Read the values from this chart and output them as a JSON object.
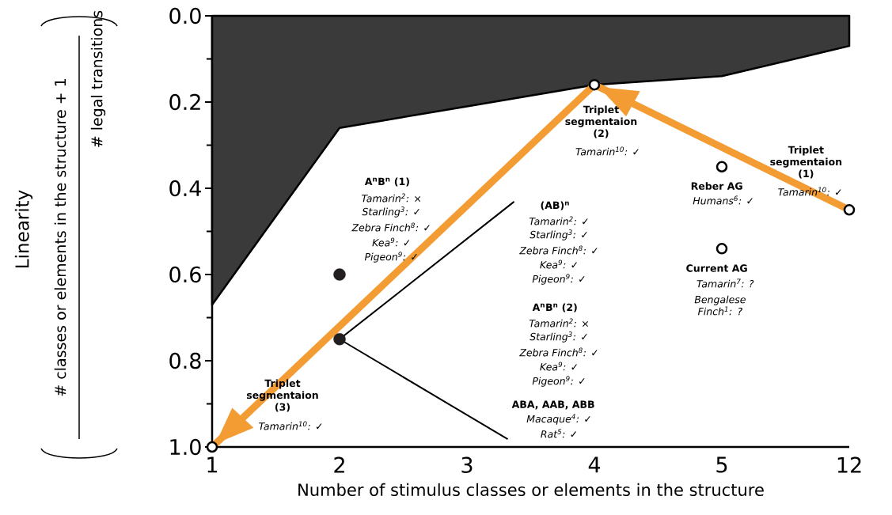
{
  "chart_data": {
    "type": "scatter",
    "xlabel": "Number of stimulus classes or elements in the structure",
    "categories": [
      "1",
      "2",
      "3",
      "4",
      "5",
      "12"
    ],
    "ylim": [
      1.0,
      0.0
    ],
    "yticks": [
      {
        "value": 0.0,
        "label": "0.0"
      },
      {
        "value": 0.1,
        "label": null
      },
      {
        "value": 0.2,
        "label": "0.2"
      },
      {
        "value": 0.3,
        "label": null
      },
      {
        "value": 0.4,
        "label": "0.4"
      },
      {
        "value": 0.5,
        "label": null
      },
      {
        "value": 0.6,
        "label": "0.6"
      },
      {
        "value": 0.7,
        "label": null
      },
      {
        "value": 0.8,
        "label": "0.8"
      },
      {
        "value": 0.9,
        "label": null
      },
      {
        "value": 1.0,
        "label": "1.0"
      }
    ],
    "series": [
      {
        "type": "area",
        "color": "#3a3a3a",
        "x": [
          "1",
          "2",
          "3",
          "4",
          "5",
          "12"
        ],
        "values": [
          0.67,
          0.26,
          0.21,
          0.16,
          0.14,
          0.07
        ]
      },
      {
        "type": "line",
        "color": "#f39c34",
        "x": [
          "12",
          "4"
        ],
        "values": [
          0.45,
          0.16
        ]
      },
      {
        "type": "line",
        "color": "#f39c34",
        "x": [
          "4",
          "1"
        ],
        "values": [
          0.16,
          1.0
        ]
      },
      {
        "type": "scatter",
        "color": "#ffffff",
        "x": [
          "1",
          "4",
          "5",
          "5",
          "12"
        ],
        "values": [
          1.0,
          0.16,
          0.35,
          0.54,
          0.45
        ]
      },
      {
        "type": "scatter",
        "color": "#231f20",
        "x": [
          "2",
          "2"
        ],
        "values": [
          0.6,
          0.75
        ]
      }
    ],
    "annotations": [
      "Triplet segmentaion (2)",
      "Tamarin$^{10}$: ✓",
      "Triplet segmentaion (1)",
      "Tamarin$^{10}$: ✓",
      "Triplet segmentaion (3)",
      "Tamarin$^{10}$: ✓",
      "Reber AG",
      "Humans$^{6}$: ✓",
      "Current AG",
      "Tamarin$^{7}$: ?",
      "Bengalese Finch$^{1}$: ?",
      "A$^{n}$B$^{n}$ (1)",
      "Tamarin$^{2}$: ×",
      "Starling$^{3}$: ✓",
      "Zebra Finch$^{8}$: ✓",
      "Kea$^{9}$: ✓",
      "Pigeon$^{9}$: ✓",
      "(AB)$^{n}$",
      "Tamarin$^{2}$: ✓",
      "Starling$^{3}$: ✓",
      "Zebra Finch$^{8}$: ✓",
      "Kea$^{9}$: ✓",
      "Pigeon$^{9}$: ✓",
      "A$^{n}$B$^{n}$ (2)",
      "Tamarin$^{2}$: ×",
      "Starling$^{3}$: ✓",
      "Zebra Finch$^{8}$: ✓",
      "Kea$^{9}$: ✓",
      "Pigeon$^{9}$: ✓",
      "ABA, AAB, ABB",
      "Macaque$^{4}$: ✓",
      "Rat$^{5}$: ✓",
      "# classes or elements in the structure + 1",
      "# legal transitions",
      "Linearity"
    ]
  }
}
